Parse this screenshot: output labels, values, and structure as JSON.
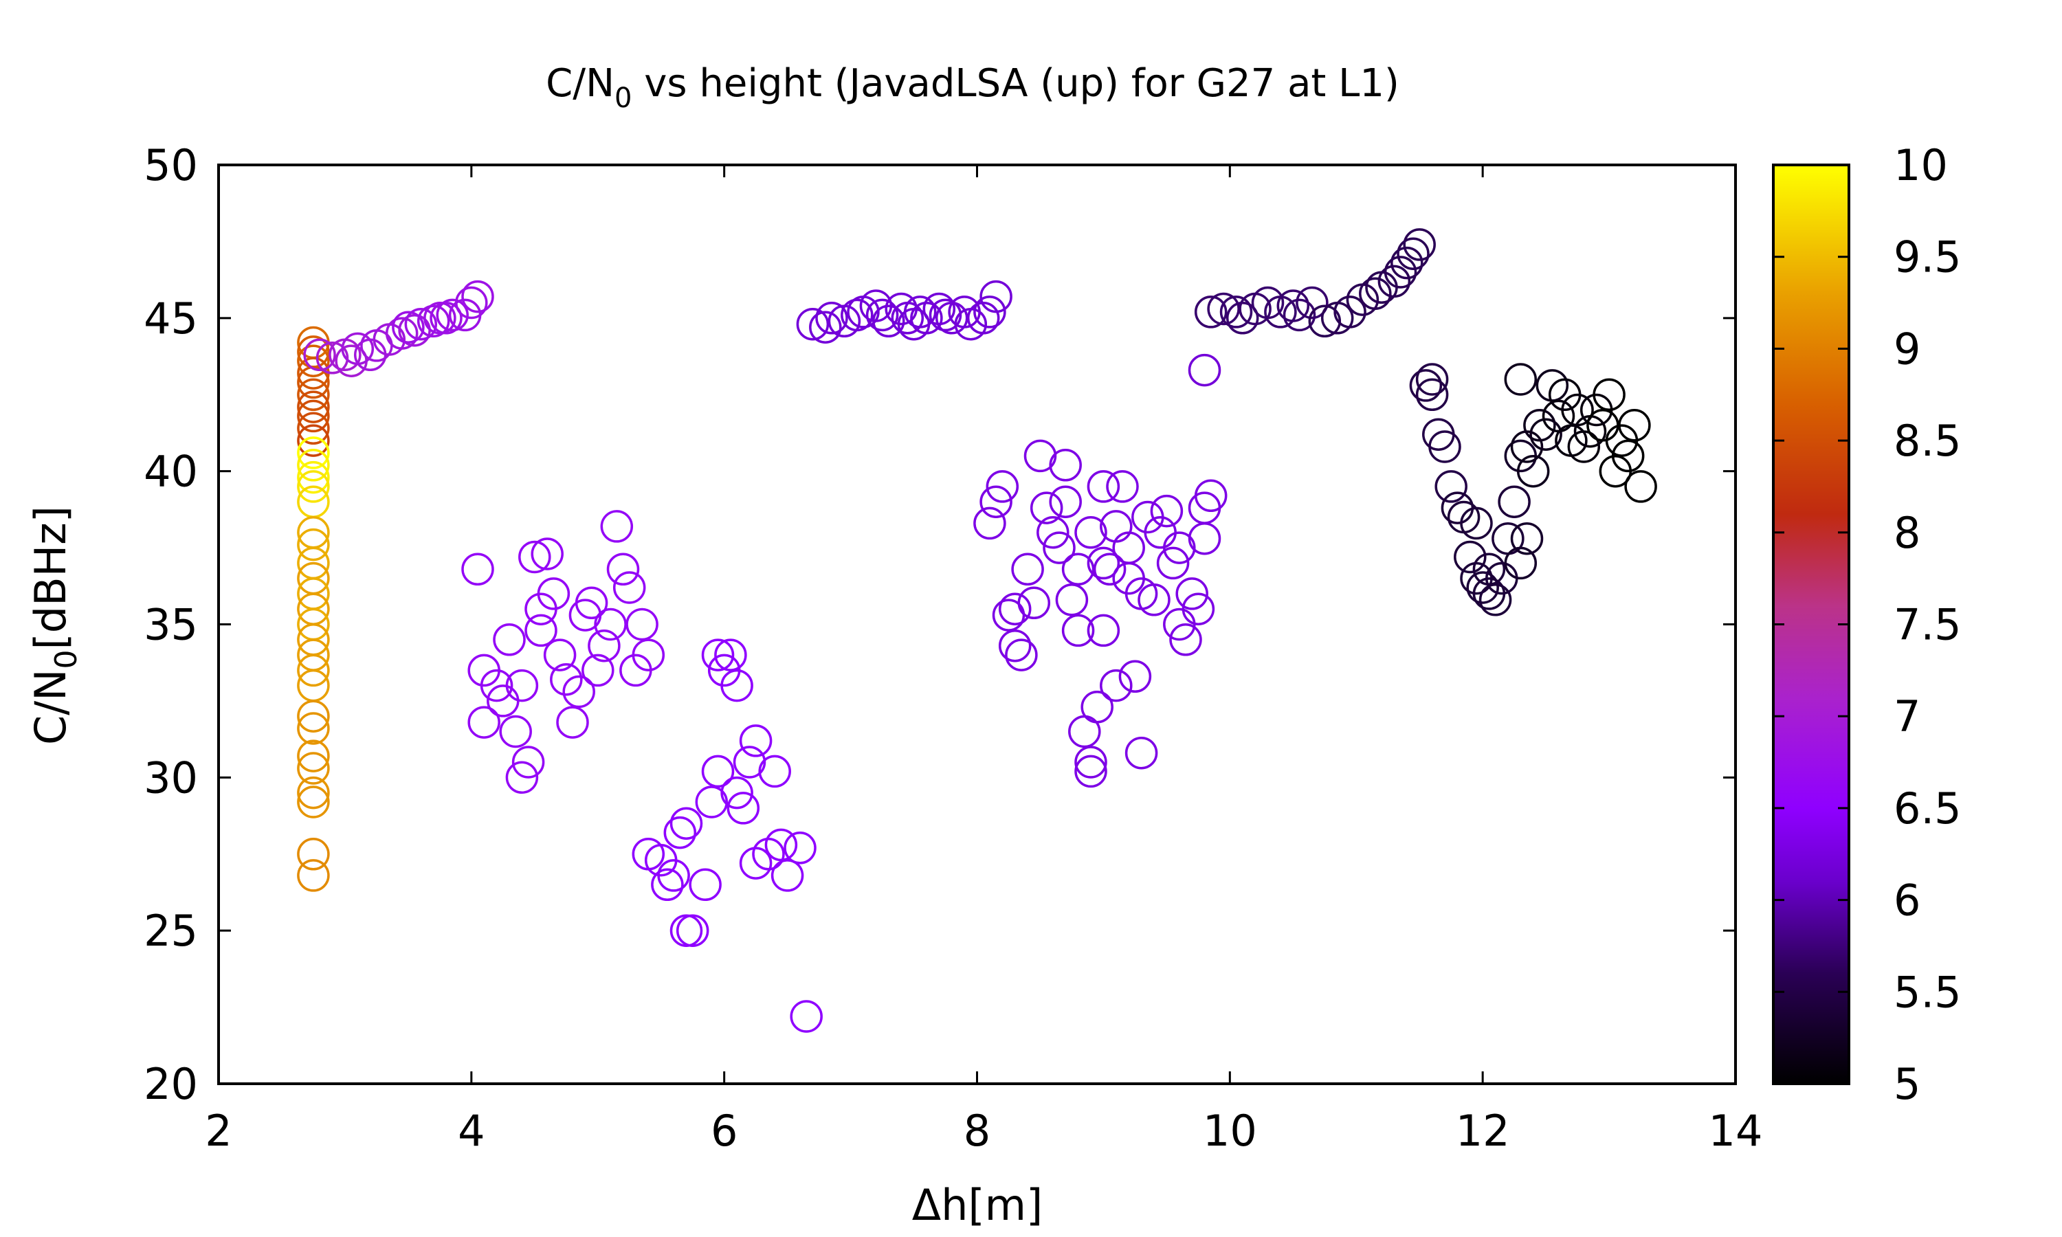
{
  "chart_data": {
    "type": "scatter",
    "title": {
      "prefix": "C/N",
      "sub": "0",
      "suffix": " vs height (JavadLSA (up) for G27 at L1)"
    },
    "xlabel": "Δh[m]",
    "ylabel": {
      "prefix": "C/N",
      "sub": "0",
      "suffix": "[dBHz]"
    },
    "xlim": [
      2,
      14
    ],
    "ylim": [
      20,
      50
    ],
    "xticks": [
      2,
      4,
      6,
      8,
      10,
      12,
      14
    ],
    "yticks": [
      20,
      25,
      30,
      35,
      40,
      45,
      50
    ],
    "colorbar": {
      "range": [
        5,
        10
      ],
      "ticks": [
        5,
        5.5,
        6,
        6.5,
        7,
        7.5,
        8,
        8.5,
        9,
        9.5,
        10
      ],
      "palette": [
        "#000000",
        "#5500aa",
        "#8f00ff",
        "#bb00dd",
        "#cc3377",
        "#cc2200",
        "#dd6600",
        "#eeaa00",
        "#ffee00",
        "#ffff00"
      ]
    },
    "grid": false,
    "legend": "none",
    "marker": "open-circle",
    "points": [
      [
        2.75,
        44.2,
        8.8
      ],
      [
        2.75,
        43.9,
        8.7
      ],
      [
        2.75,
        43.6,
        8.7
      ],
      [
        2.75,
        43.2,
        8.6
      ],
      [
        2.75,
        42.9,
        8.6
      ],
      [
        2.75,
        42.5,
        8.6
      ],
      [
        2.75,
        42.1,
        8.5
      ],
      [
        2.75,
        41.8,
        8.5
      ],
      [
        2.75,
        41.4,
        8.5
      ],
      [
        2.75,
        41.0,
        8.4
      ],
      [
        2.75,
        40.6,
        10
      ],
      [
        2.75,
        40.2,
        9.9
      ],
      [
        2.75,
        39.8,
        9.9
      ],
      [
        2.75,
        39.5,
        9.8
      ],
      [
        2.75,
        39.0,
        9.7
      ],
      [
        2.75,
        38.0,
        9.4
      ],
      [
        2.75,
        37.6,
        9.4
      ],
      [
        2.75,
        37.0,
        9.4
      ],
      [
        2.75,
        36.5,
        9.3
      ],
      [
        2.75,
        36.0,
        9.4
      ],
      [
        2.75,
        35.5,
        9.3
      ],
      [
        2.75,
        35.0,
        9.4
      ],
      [
        2.75,
        34.5,
        9.3
      ],
      [
        2.75,
        34.0,
        9.3
      ],
      [
        2.75,
        33.5,
        9.3
      ],
      [
        2.75,
        33.0,
        9.3
      ],
      [
        2.75,
        32.0,
        9.2
      ],
      [
        2.75,
        31.6,
        9.2
      ],
      [
        2.75,
        30.7,
        9.2
      ],
      [
        2.75,
        30.3,
        9.2
      ],
      [
        2.75,
        29.5,
        9.2
      ],
      [
        2.75,
        29.2,
        9.2
      ],
      [
        2.75,
        27.5,
        9.1
      ],
      [
        2.75,
        26.8,
        9.1
      ],
      [
        2.8,
        43.8,
        7.0
      ],
      [
        2.9,
        43.7,
        7.0
      ],
      [
        3.0,
        43.8,
        7.0
      ],
      [
        3.05,
        43.6,
        7.0
      ],
      [
        3.1,
        44.0,
        6.9
      ],
      [
        3.2,
        43.8,
        6.9
      ],
      [
        3.25,
        44.1,
        6.9
      ],
      [
        3.35,
        44.3,
        6.9
      ],
      [
        3.45,
        44.5,
        6.9
      ],
      [
        3.55,
        44.6,
        6.9
      ],
      [
        3.6,
        44.8,
        6.8
      ],
      [
        3.7,
        44.9,
        6.8
      ],
      [
        3.75,
        45.0,
        6.8
      ],
      [
        3.85,
        45.1,
        6.8
      ],
      [
        3.95,
        45.1,
        6.8
      ],
      [
        4.0,
        45.5,
        6.8
      ],
      [
        4.05,
        45.7,
        6.8
      ],
      [
        3.8,
        45.0,
        6.8
      ],
      [
        3.5,
        44.7,
        6.8
      ],
      [
        6.7,
        44.8,
        6.2
      ],
      [
        6.8,
        44.7,
        6.2
      ],
      [
        6.85,
        45.0,
        6.2
      ],
      [
        6.95,
        44.9,
        6.2
      ],
      [
        7.05,
        45.1,
        6.2
      ],
      [
        7.1,
        45.2,
        6.2
      ],
      [
        7.2,
        45.4,
        6.2
      ],
      [
        7.25,
        45.1,
        6.2
      ],
      [
        7.3,
        44.9,
        6.2
      ],
      [
        7.4,
        45.3,
        6.2
      ],
      [
        7.45,
        45.0,
        6.2
      ],
      [
        7.5,
        44.8,
        6.2
      ],
      [
        7.55,
        45.2,
        6.2
      ],
      [
        7.6,
        45.0,
        6.2
      ],
      [
        7.7,
        45.3,
        6.2
      ],
      [
        7.75,
        45.1,
        6.2
      ],
      [
        7.8,
        45.0,
        6.2
      ],
      [
        7.9,
        45.2,
        6.2
      ],
      [
        7.95,
        44.8,
        6.2
      ],
      [
        8.05,
        45.0,
        6.2
      ],
      [
        8.1,
        45.2,
        6.2
      ],
      [
        8.15,
        45.7,
        6.2
      ],
      [
        9.85,
        45.2,
        5.7
      ],
      [
        9.95,
        45.3,
        5.7
      ],
      [
        10.05,
        45.2,
        5.7
      ],
      [
        10.1,
        45.0,
        5.7
      ],
      [
        10.2,
        45.3,
        5.7
      ],
      [
        10.3,
        45.5,
        5.7
      ],
      [
        10.4,
        45.2,
        5.7
      ],
      [
        10.5,
        45.4,
        5.7
      ],
      [
        10.55,
        45.1,
        5.7
      ],
      [
        10.65,
        45.5,
        5.7
      ],
      [
        10.75,
        44.9,
        5.6
      ],
      [
        10.85,
        45.0,
        5.6
      ],
      [
        10.95,
        45.2,
        5.6
      ],
      [
        11.05,
        45.6,
        5.6
      ],
      [
        11.15,
        45.8,
        5.6
      ],
      [
        11.2,
        46.0,
        5.6
      ],
      [
        11.3,
        46.2,
        5.6
      ],
      [
        11.35,
        46.5,
        5.6
      ],
      [
        11.4,
        46.8,
        5.6
      ],
      [
        11.45,
        47.1,
        5.6
      ],
      [
        11.5,
        47.4,
        5.6
      ],
      [
        9.8,
        43.3,
        6.2
      ],
      [
        4.05,
        36.8,
        6.6
      ],
      [
        4.1,
        31.8,
        6.6
      ],
      [
        4.1,
        33.5,
        6.6
      ],
      [
        4.2,
        33.0,
        6.6
      ],
      [
        4.25,
        32.5,
        6.6
      ],
      [
        4.3,
        34.5,
        6.6
      ],
      [
        4.35,
        31.5,
        6.6
      ],
      [
        4.4,
        33.0,
        6.6
      ],
      [
        4.4,
        30.0,
        6.6
      ],
      [
        4.45,
        30.5,
        6.6
      ],
      [
        4.5,
        37.2,
        6.6
      ],
      [
        4.55,
        35.5,
        6.6
      ],
      [
        4.6,
        37.3,
        6.6
      ],
      [
        4.65,
        36.0,
        6.6
      ],
      [
        4.7,
        34.0,
        6.6
      ],
      [
        4.75,
        33.2,
        6.6
      ],
      [
        4.8,
        31.8,
        6.6
      ],
      [
        4.85,
        32.8,
        6.6
      ],
      [
        4.9,
        35.3,
        6.6
      ],
      [
        4.95,
        35.7,
        6.6
      ],
      [
        5.05,
        34.3,
        6.6
      ],
      [
        5.1,
        35.0,
        6.6
      ],
      [
        5.15,
        38.2,
        6.6
      ],
      [
        5.2,
        36.8,
        6.6
      ],
      [
        5.25,
        36.2,
        6.6
      ],
      [
        5.3,
        33.5,
        6.6
      ],
      [
        5.35,
        35.0,
        6.6
      ],
      [
        5.4,
        34.0,
        6.6
      ],
      [
        4.55,
        34.8,
        6.6
      ],
      [
        5.0,
        33.5,
        6.6
      ],
      [
        5.4,
        27.5,
        6.5
      ],
      [
        5.5,
        27.3,
        6.5
      ],
      [
        5.55,
        26.5,
        6.5
      ],
      [
        5.6,
        26.8,
        6.5
      ],
      [
        5.65,
        28.2,
        6.5
      ],
      [
        5.7,
        28.5,
        6.5
      ],
      [
        5.7,
        25.0,
        6.5
      ],
      [
        5.75,
        25.0,
        6.5
      ],
      [
        5.85,
        26.5,
        6.5
      ],
      [
        5.9,
        29.2,
        6.5
      ],
      [
        5.95,
        30.2,
        6.5
      ],
      [
        5.95,
        34.0,
        6.5
      ],
      [
        6.0,
        33.5,
        6.5
      ],
      [
        6.05,
        34.0,
        6.5
      ],
      [
        6.1,
        33.0,
        6.5
      ],
      [
        6.1,
        29.5,
        6.5
      ],
      [
        6.15,
        29.0,
        6.5
      ],
      [
        6.2,
        30.5,
        6.5
      ],
      [
        6.25,
        31.2,
        6.5
      ],
      [
        6.25,
        27.2,
        6.5
      ],
      [
        6.35,
        27.5,
        6.5
      ],
      [
        6.4,
        30.2,
        6.5
      ],
      [
        6.45,
        27.8,
        6.5
      ],
      [
        6.5,
        26.8,
        6.5
      ],
      [
        6.6,
        27.7,
        6.5
      ],
      [
        6.65,
        22.2,
        6.5
      ],
      [
        8.1,
        38.3,
        6.3
      ],
      [
        8.15,
        39.0,
        6.3
      ],
      [
        8.2,
        39.5,
        6.3
      ],
      [
        8.25,
        35.3,
        6.3
      ],
      [
        8.3,
        34.3,
        6.3
      ],
      [
        8.35,
        34.0,
        6.3
      ],
      [
        8.4,
        36.8,
        6.3
      ],
      [
        8.45,
        35.7,
        6.3
      ],
      [
        8.5,
        40.5,
        6.3
      ],
      [
        8.55,
        38.8,
        6.3
      ],
      [
        8.6,
        38.0,
        6.3
      ],
      [
        8.65,
        37.5,
        6.3
      ],
      [
        8.7,
        40.2,
        6.3
      ],
      [
        8.7,
        39.0,
        6.3
      ],
      [
        8.75,
        35.8,
        6.3
      ],
      [
        8.8,
        34.8,
        6.3
      ],
      [
        8.8,
        36.8,
        6.3
      ],
      [
        8.85,
        31.5,
        6.3
      ],
      [
        8.9,
        30.2,
        6.3
      ],
      [
        8.9,
        30.5,
        6.3
      ],
      [
        8.95,
        32.3,
        6.3
      ],
      [
        9.0,
        39.5,
        6.3
      ],
      [
        9.0,
        34.8,
        6.3
      ],
      [
        9.05,
        36.8,
        6.3
      ],
      [
        9.1,
        38.2,
        6.3
      ],
      [
        9.1,
        33.0,
        6.3
      ],
      [
        9.15,
        39.5,
        6.3
      ],
      [
        9.2,
        36.5,
        6.3
      ],
      [
        9.25,
        33.3,
        6.3
      ],
      [
        9.3,
        36.0,
        6.3
      ],
      [
        9.3,
        30.8,
        6.3
      ],
      [
        9.35,
        38.5,
        6.3
      ],
      [
        9.4,
        35.8,
        6.3
      ],
      [
        9.45,
        38.0,
        6.3
      ],
      [
        9.5,
        38.7,
        6.3
      ],
      [
        9.55,
        37.0,
        6.3
      ],
      [
        9.6,
        37.5,
        6.3
      ],
      [
        9.6,
        35.0,
        6.3
      ],
      [
        9.65,
        34.5,
        6.3
      ],
      [
        9.7,
        36.0,
        6.3
      ],
      [
        9.75,
        35.5,
        6.3
      ],
      [
        9.8,
        37.8,
        6.3
      ],
      [
        9.8,
        38.8,
        6.3
      ],
      [
        9.85,
        39.2,
        6.3
      ],
      [
        8.3,
        35.5,
        6.3
      ],
      [
        8.9,
        38.0,
        6.3
      ],
      [
        9.2,
        37.5,
        6.3
      ],
      [
        9.0,
        37.0,
        6.3
      ],
      [
        11.55,
        42.8,
        5.5
      ],
      [
        11.6,
        43.0,
        5.5
      ],
      [
        11.6,
        42.5,
        5.5
      ],
      [
        11.65,
        41.2,
        5.5
      ],
      [
        11.7,
        40.8,
        5.5
      ],
      [
        11.75,
        39.5,
        5.5
      ],
      [
        11.8,
        38.8,
        5.4
      ],
      [
        11.85,
        38.5,
        5.4
      ],
      [
        11.9,
        37.2,
        5.4
      ],
      [
        11.95,
        36.5,
        5.4
      ],
      [
        11.95,
        38.3,
        5.4
      ],
      [
        12.0,
        36.2,
        5.4
      ],
      [
        12.05,
        36.8,
        5.4
      ],
      [
        12.05,
        36.0,
        5.4
      ],
      [
        12.1,
        35.8,
        5.4
      ],
      [
        12.15,
        36.5,
        5.4
      ],
      [
        12.2,
        37.8,
        5.4
      ],
      [
        12.25,
        39.0,
        5.4
      ],
      [
        12.3,
        40.5,
        5.3
      ],
      [
        12.3,
        37.0,
        5.3
      ],
      [
        12.35,
        37.8,
        5.3
      ],
      [
        12.3,
        43.0,
        5.2
      ],
      [
        12.35,
        40.8,
        5.2
      ],
      [
        12.4,
        40.0,
        5.2
      ],
      [
        12.45,
        41.5,
        5.2
      ],
      [
        12.5,
        41.2,
        5.2
      ],
      [
        12.55,
        42.8,
        5.2
      ],
      [
        12.6,
        41.8,
        5.1
      ],
      [
        12.65,
        42.5,
        5.1
      ],
      [
        12.7,
        41.0,
        5.1
      ],
      [
        12.75,
        42.0,
        5.1
      ],
      [
        12.8,
        40.8,
        5.1
      ],
      [
        12.85,
        41.3,
        5.1
      ],
      [
        12.9,
        42.0,
        5.1
      ],
      [
        12.95,
        41.5,
        5.0
      ],
      [
        13.0,
        42.5,
        5.0
      ],
      [
        13.05,
        40.0,
        5.0
      ],
      [
        13.1,
        41.0,
        5.0
      ],
      [
        13.15,
        40.5,
        5.0
      ],
      [
        13.2,
        41.5,
        5.0
      ],
      [
        13.25,
        39.5,
        5.0
      ]
    ]
  }
}
